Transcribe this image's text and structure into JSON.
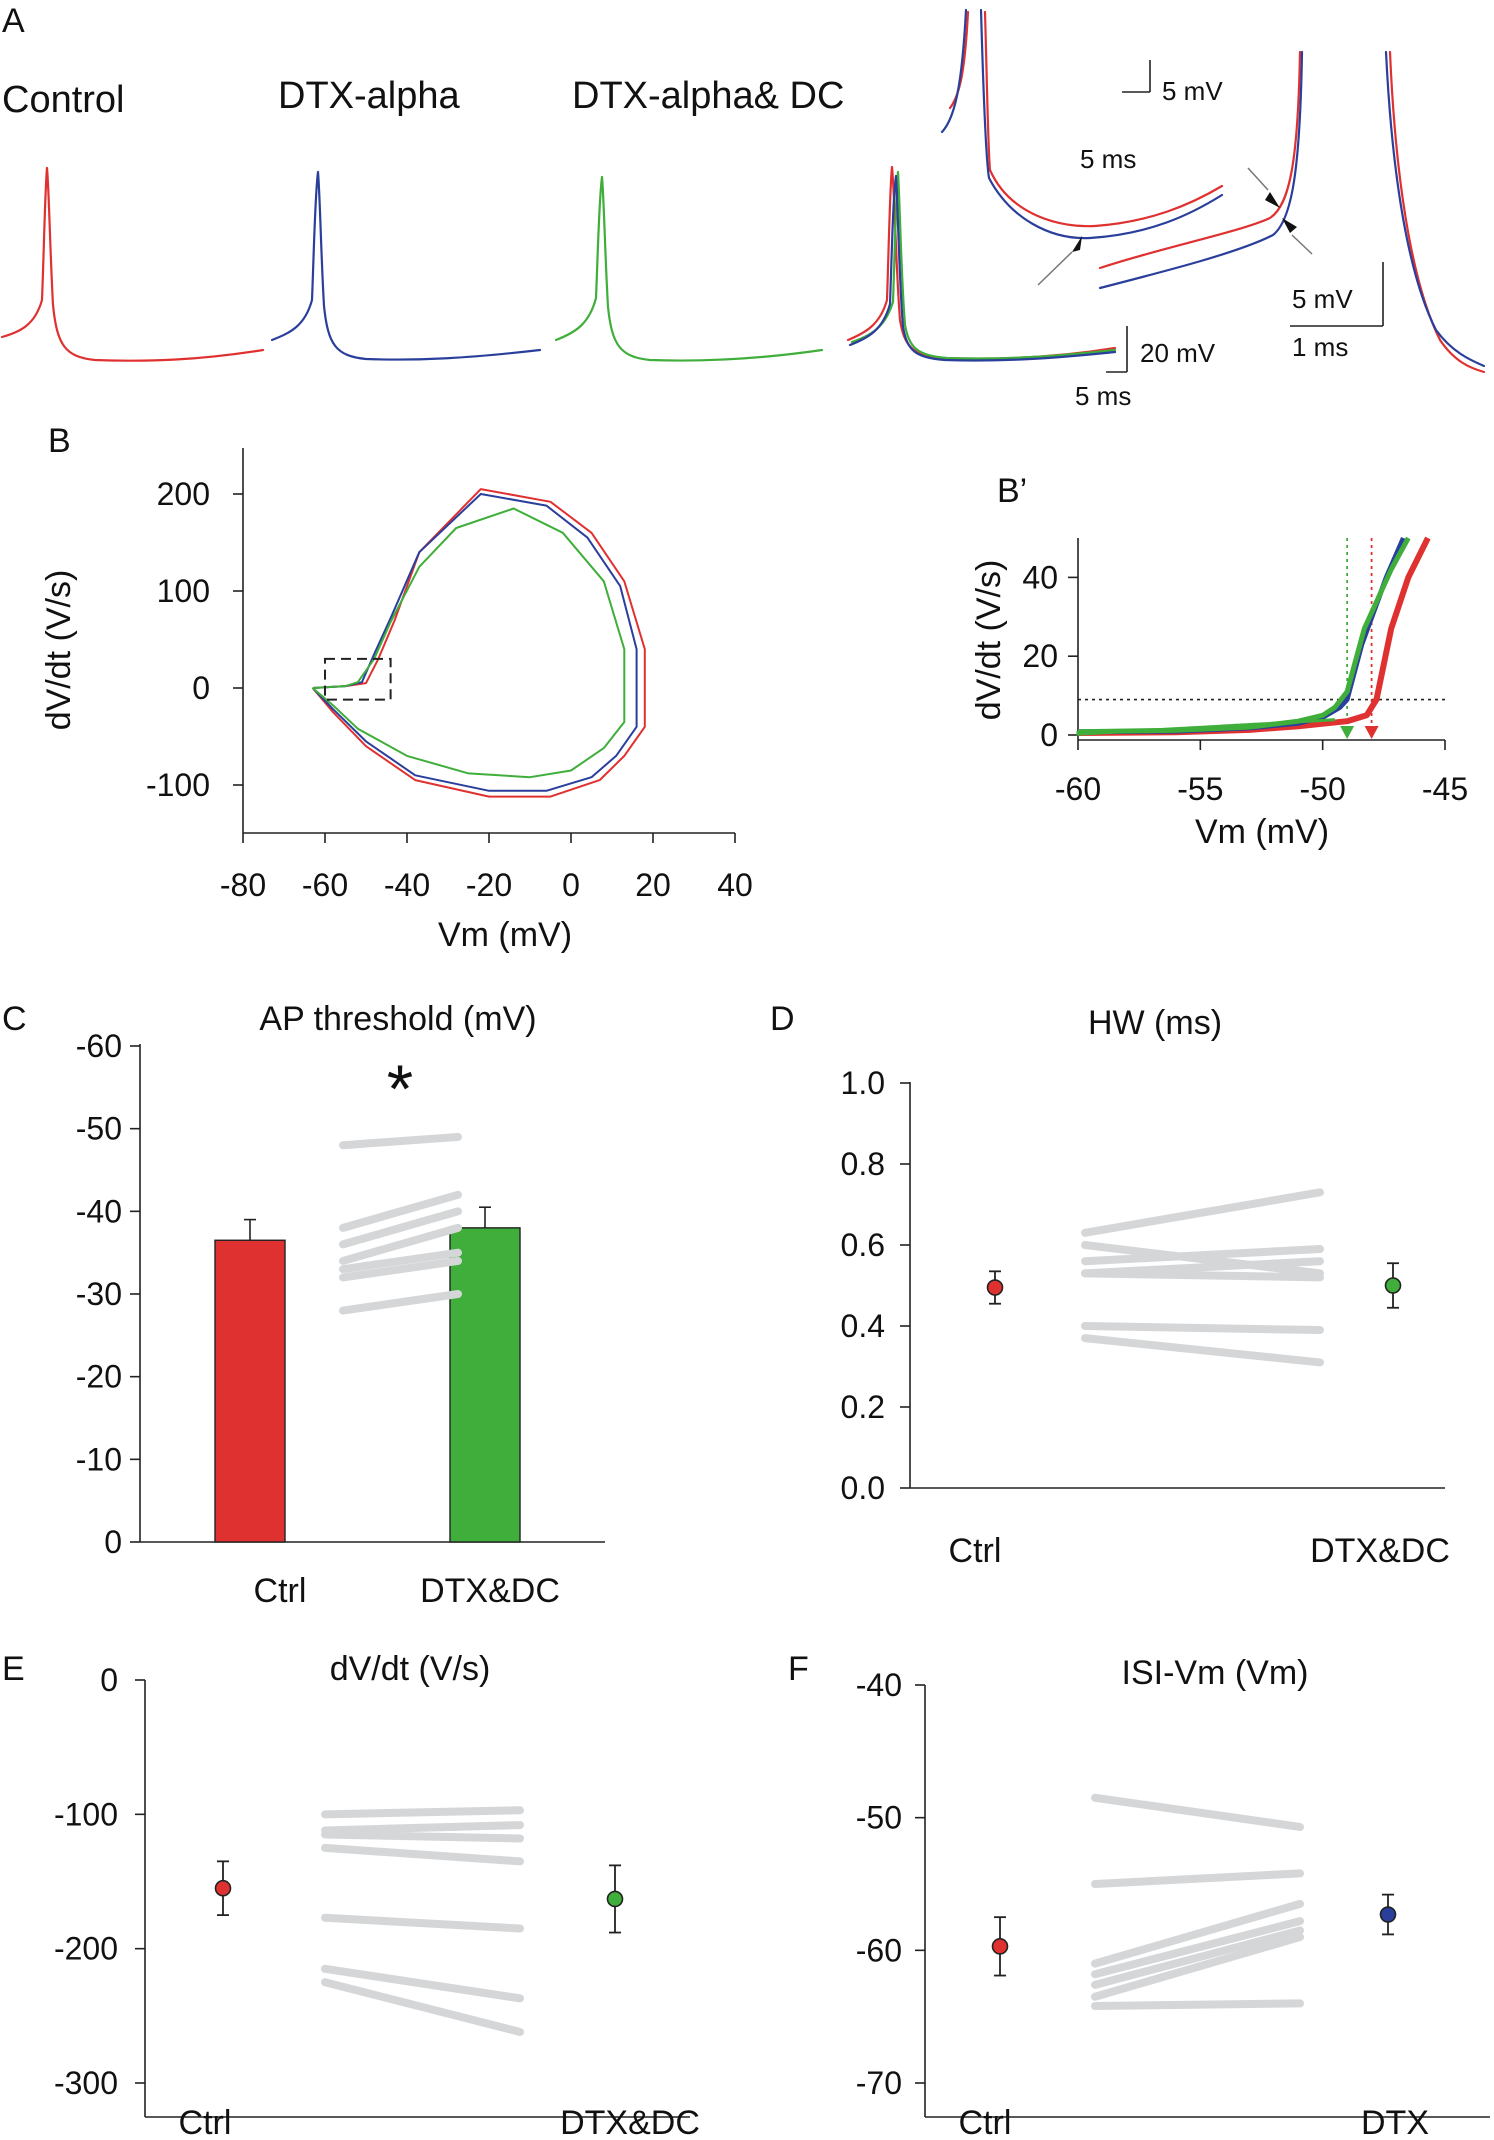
{
  "colors": {
    "ctrl": "#e03131",
    "dtx": "#2a3f9b",
    "dc": "#3fae3a",
    "paired": "#d4d6d8",
    "dashed": "#222222"
  },
  "panelA": {
    "letter": "A",
    "labels": [
      "Control",
      "DTX-alpha",
      "DTX-alpha& DC"
    ],
    "scalebar_main": {
      "v": "20 mV",
      "t": "5 ms"
    },
    "scalebar_inset1": {
      "v": "5 mV",
      "t": "5 ms"
    },
    "scalebar_inset2": {
      "v": "5 mV",
      "t": "1 ms"
    }
  },
  "panelB": {
    "letter": "B",
    "xlabel": "Vm (mV)",
    "ylabel": "dV/dt (V/s)"
  },
  "panelBp": {
    "letter": "B’",
    "xlabel": "Vm (mV)",
    "ylabel": "dV/dt (V/s)"
  },
  "panelC": {
    "letter": "C",
    "title": "AP threshold (mV)",
    "star": "*"
  },
  "panelD": {
    "letter": "D",
    "title": "HW (ms)"
  },
  "panelE": {
    "letter": "E",
    "title": "dV/dt (V/s)"
  },
  "panelF": {
    "letter": "F",
    "title": "ISI-Vm (Vm)"
  },
  "chart_data": [
    {
      "id": "B",
      "type": "line",
      "xlabel": "Vm (mV)",
      "ylabel": "dV/dt (V/s)",
      "xlim": [
        -80,
        40
      ],
      "ylim": [
        -150,
        200
      ],
      "xticks": [
        -80,
        -60,
        -40,
        -20,
        0,
        20,
        40
      ],
      "yticks": [
        200,
        100,
        0,
        -100
      ],
      "series": [
        {
          "color": "ctrl",
          "points": [
            [
              -63,
              0
            ],
            [
              -55,
              2
            ],
            [
              -50,
              5
            ],
            [
              -47,
              30
            ],
            [
              -43,
              70
            ],
            [
              -37,
              140
            ],
            [
              -22,
              205
            ],
            [
              -5,
              192
            ],
            [
              5,
              160
            ],
            [
              13,
              110
            ],
            [
              18,
              40
            ],
            [
              18,
              -40
            ],
            [
              13,
              -70
            ],
            [
              7,
              -95
            ],
            [
              -5,
              -112
            ],
            [
              -20,
              -112
            ],
            [
              -38,
              -95
            ],
            [
              -50,
              -60
            ],
            [
              -58,
              -25
            ],
            [
              -63,
              0
            ]
          ]
        },
        {
          "color": "dtx",
          "points": [
            [
              -63,
              0
            ],
            [
              -55,
              2
            ],
            [
              -51,
              6
            ],
            [
              -48,
              35
            ],
            [
              -44,
              72
            ],
            [
              -37,
              140
            ],
            [
              -22,
              200
            ],
            [
              -6,
              188
            ],
            [
              4,
              155
            ],
            [
              12,
              105
            ],
            [
              16,
              40
            ],
            [
              16,
              -40
            ],
            [
              11,
              -70
            ],
            [
              5,
              -92
            ],
            [
              -6,
              -106
            ],
            [
              -20,
              -106
            ],
            [
              -38,
              -90
            ],
            [
              -50,
              -55
            ],
            [
              -58,
              -22
            ],
            [
              -63,
              0
            ]
          ]
        },
        {
          "color": "dc",
          "points": [
            [
              -63,
              0
            ],
            [
              -55,
              2
            ],
            [
              -52,
              6
            ],
            [
              -48,
              30
            ],
            [
              -44,
              68
            ],
            [
              -37,
              125
            ],
            [
              -28,
              165
            ],
            [
              -14,
              185
            ],
            [
              -2,
              160
            ],
            [
              8,
              110
            ],
            [
              13,
              40
            ],
            [
              13,
              -35
            ],
            [
              8,
              -62
            ],
            [
              0,
              -85
            ],
            [
              -10,
              -92
            ],
            [
              -25,
              -88
            ],
            [
              -40,
              -70
            ],
            [
              -52,
              -42
            ],
            [
              -58,
              -18
            ],
            [
              -63,
              0
            ]
          ]
        }
      ],
      "zoom_box": {
        "x": [
          -60,
          -44
        ],
        "y": [
          -12,
          30
        ]
      }
    },
    {
      "id": "B'",
      "type": "line",
      "xlabel": "Vm (mV)",
      "ylabel": "dV/dt (V/s)",
      "xlim": [
        -60,
        -45
      ],
      "ylim": [
        0,
        50
      ],
      "xticks": [
        -60,
        -55,
        -50,
        -45
      ],
      "yticks": [
        40,
        20,
        0
      ],
      "threshold_dvdt": 9,
      "threshold_vm": {
        "ctrl": -48,
        "dtx": -49,
        "dc": -49
      },
      "series": [
        {
          "color": "ctrl",
          "points": [
            [
              -60,
              0.5
            ],
            [
              -56,
              0.7
            ],
            [
              -53,
              1.3
            ],
            [
              -51,
              2.2
            ],
            [
              -49,
              3.5
            ],
            [
              -48.2,
              5
            ],
            [
              -47.8,
              9
            ],
            [
              -47.2,
              27
            ],
            [
              -46.5,
              40
            ],
            [
              -45.7,
              50
            ]
          ]
        },
        {
          "color": "dtx",
          "points": [
            [
              -60,
              0.8
            ],
            [
              -56,
              1.0
            ],
            [
              -53,
              1.8
            ],
            [
              -51,
              3
            ],
            [
              -50,
              4.5
            ],
            [
              -49.3,
              7
            ],
            [
              -49,
              9
            ],
            [
              -48.4,
              23
            ],
            [
              -47.4,
              40
            ],
            [
              -46.7,
              50
            ]
          ]
        },
        {
          "color": "dc",
          "points": [
            [
              -60,
              0.8
            ],
            [
              -56,
              1.2
            ],
            [
              -53,
              2
            ],
            [
              -51,
              3.5
            ],
            [
              -50,
              5
            ],
            [
              -49.5,
              7
            ],
            [
              -49,
              11
            ],
            [
              -48.3,
              27
            ],
            [
              -47.2,
              42
            ],
            [
              -46.5,
              50
            ]
          ]
        }
      ]
    },
    {
      "id": "C",
      "type": "bar",
      "title": "AP threshold (mV)",
      "categories": [
        "Ctrl",
        "DTX&DC"
      ],
      "values": [
        -36.5,
        -38
      ],
      "errors": [
        2.5,
        2.5
      ],
      "bar_colors": [
        "ctrl",
        "dc"
      ],
      "ylim": [
        0,
        -60
      ],
      "yticks": [
        -60,
        -50,
        -40,
        -30,
        -20,
        -10,
        0
      ],
      "paired": [
        [
          -48,
          -49
        ],
        [
          -38,
          -42
        ],
        [
          -36,
          -40
        ],
        [
          -34,
          -38
        ],
        [
          -33,
          -35
        ],
        [
          -32,
          -34
        ],
        [
          -28,
          -30
        ]
      ],
      "significance": "*"
    },
    {
      "id": "D",
      "type": "scatter",
      "title": "HW (ms)",
      "categories": [
        "Ctrl",
        "DTX&DC"
      ],
      "means": [
        0.495,
        0.5
      ],
      "errors": [
        0.04,
        0.055
      ],
      "point_colors": [
        "ctrl",
        "dc"
      ],
      "ylim": [
        0,
        1
      ],
      "yticks": [
        1.0,
        0.8,
        0.6,
        0.4,
        0.2,
        0.0
      ],
      "paired": [
        [
          0.63,
          0.73
        ],
        [
          0.6,
          0.53
        ],
        [
          0.56,
          0.59
        ],
        [
          0.53,
          0.56
        ],
        [
          0.53,
          0.52
        ],
        [
          0.4,
          0.39
        ],
        [
          0.37,
          0.31
        ]
      ]
    },
    {
      "id": "E",
      "type": "scatter",
      "title": "dV/dt (V/s)",
      "categories": [
        "Ctrl",
        "DTX&DC"
      ],
      "means": [
        -155,
        -163
      ],
      "errors": [
        20,
        25
      ],
      "point_colors": [
        "ctrl",
        "dc"
      ],
      "ylim": [
        0,
        -350
      ],
      "yticks": [
        0,
        -100,
        -200,
        -300
      ],
      "paired": [
        [
          -100,
          -97
        ],
        [
          -112,
          -108
        ],
        [
          -115,
          -118
        ],
        [
          -125,
          -135
        ],
        [
          -177,
          -185
        ],
        [
          -215,
          -237
        ],
        [
          -225,
          -262
        ]
      ]
    },
    {
      "id": "F",
      "type": "scatter",
      "title": "ISI-Vm (Vm)",
      "categories": [
        "Ctrl",
        "DTX"
      ],
      "means": [
        -59.7,
        -57.3
      ],
      "errors": [
        2.2,
        1.5
      ],
      "point_colors": [
        "ctrl",
        "dtx"
      ],
      "ylim": [
        -40,
        -74
      ],
      "yticks": [
        -40,
        -50,
        -60,
        -70
      ],
      "paired": [
        [
          -48.5,
          -50.7
        ],
        [
          -55,
          -54.2
        ],
        [
          -61,
          -56.5
        ],
        [
          -61.8,
          -57.8
        ],
        [
          -62.6,
          -58.5
        ],
        [
          -63.5,
          -59
        ],
        [
          -64.2,
          -64
        ]
      ]
    }
  ]
}
